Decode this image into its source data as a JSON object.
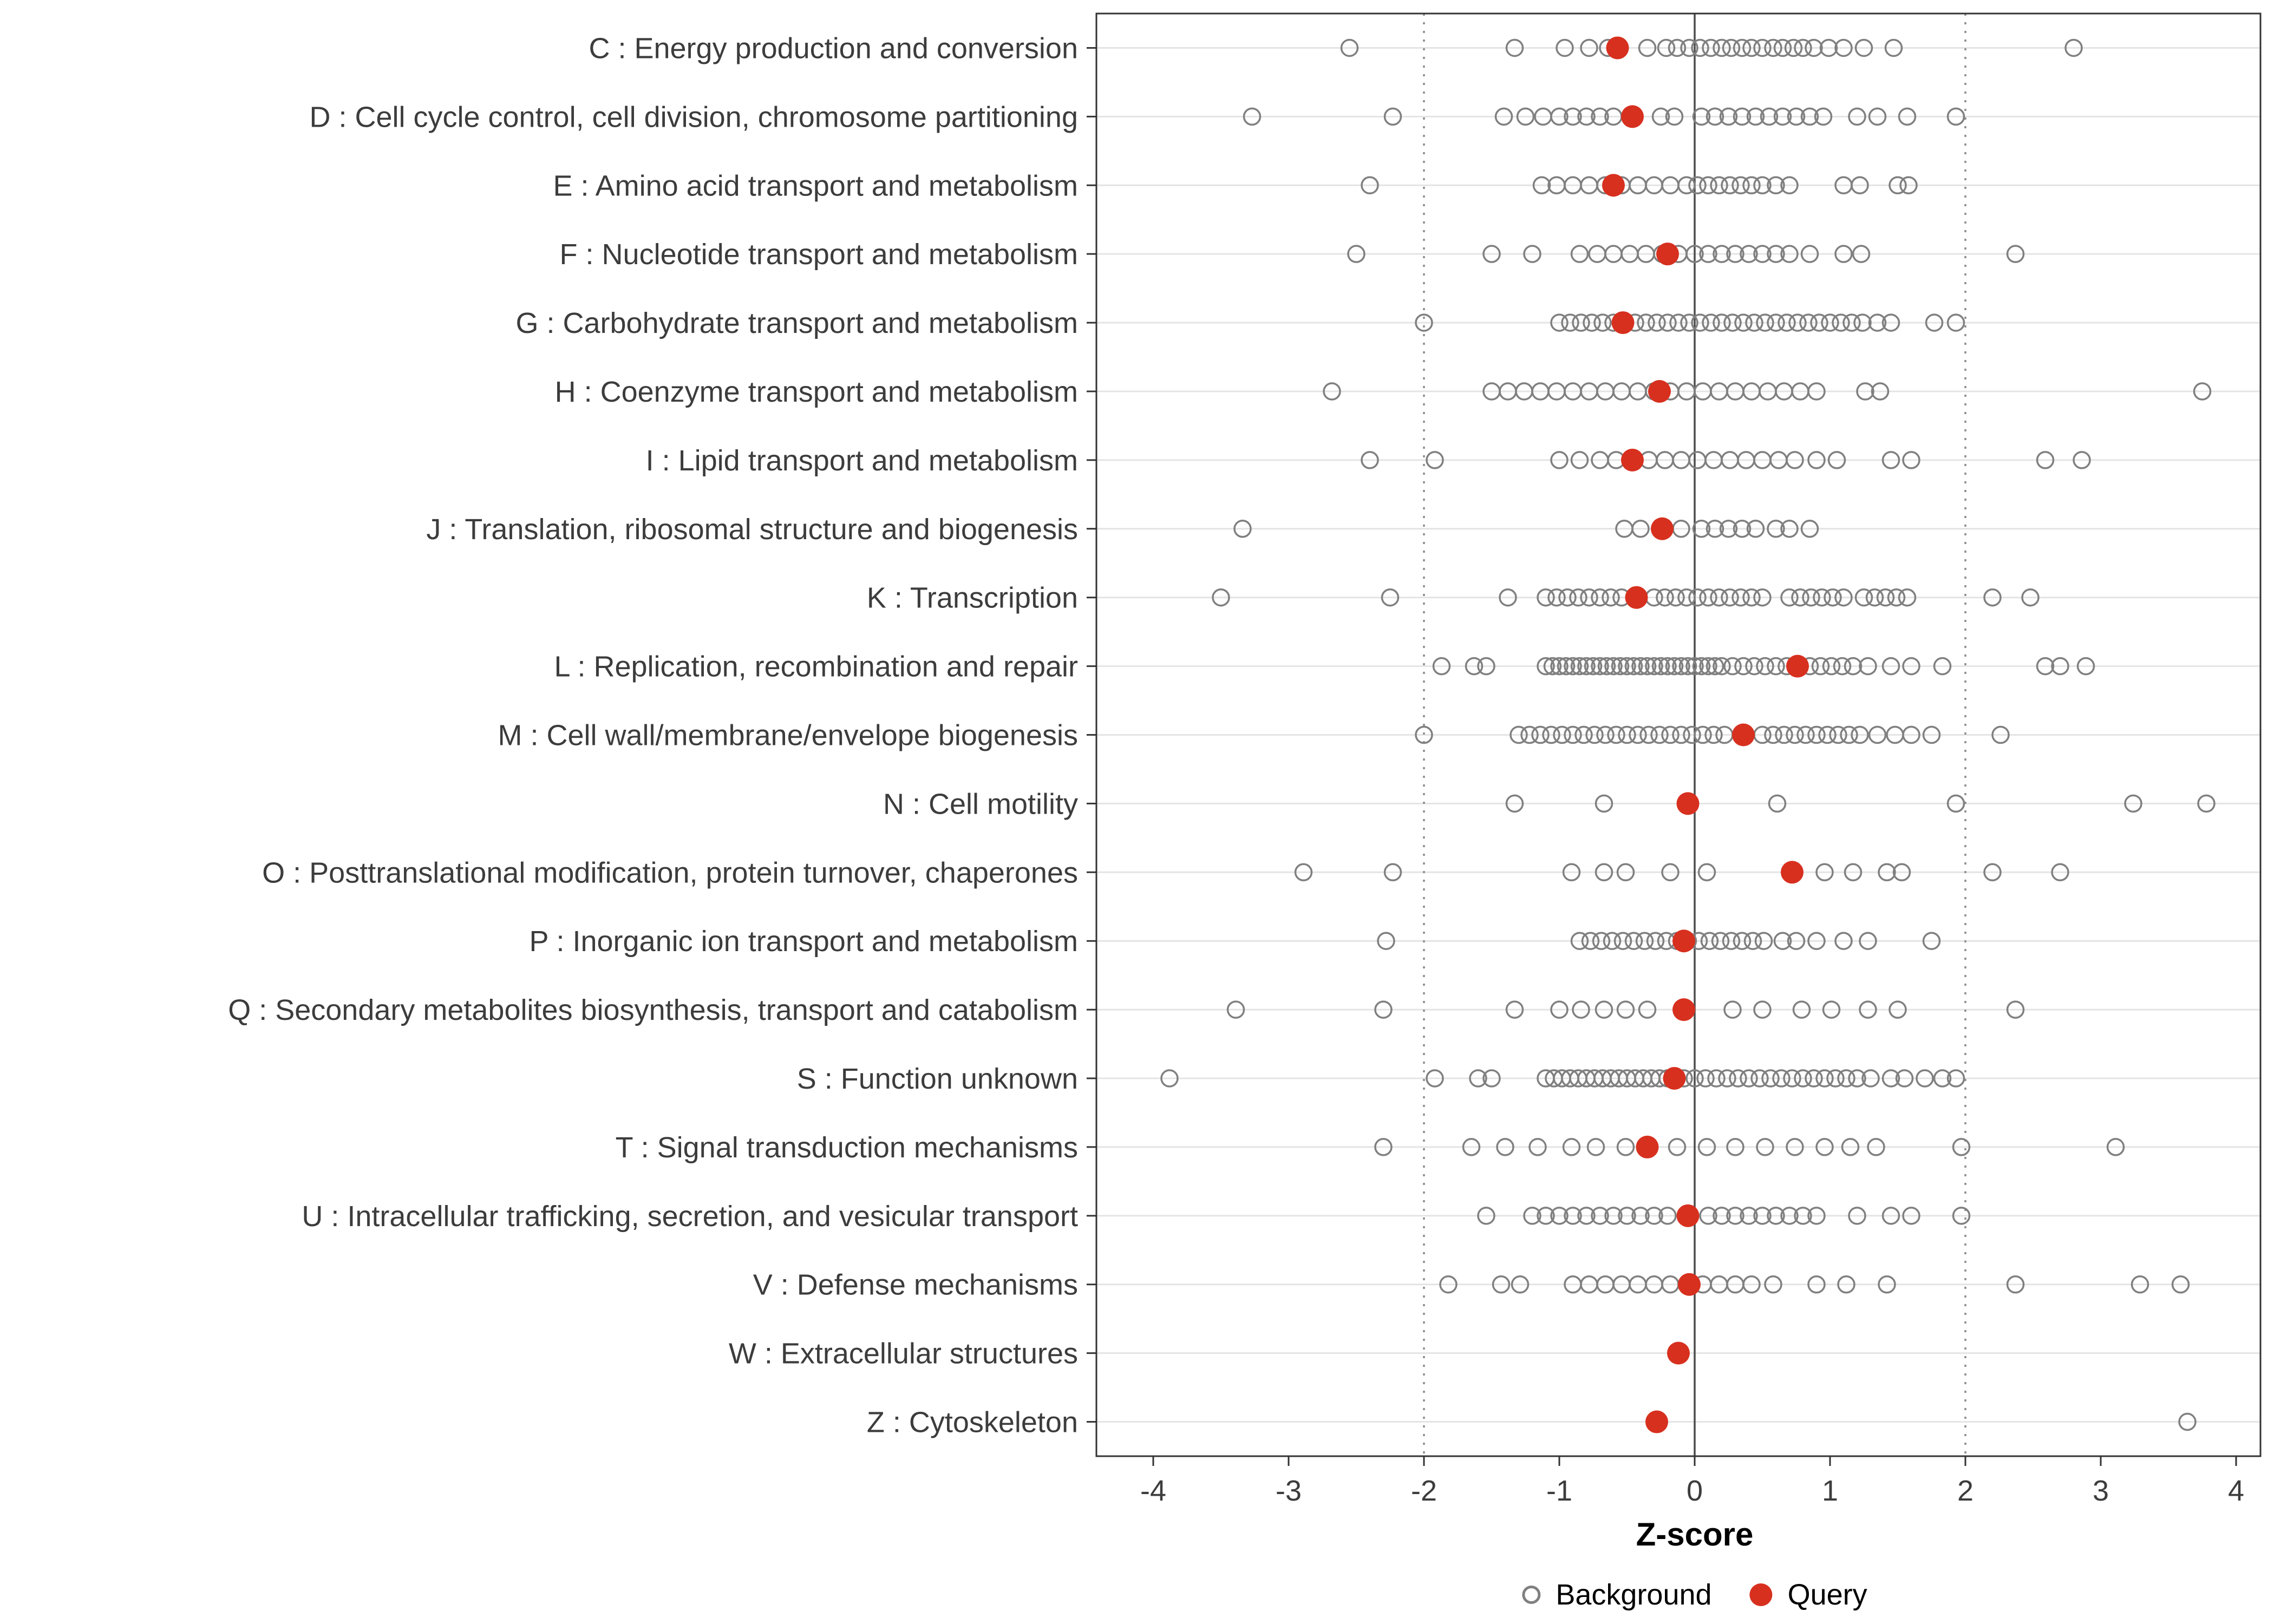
{
  "chart_data": {
    "type": "scatter",
    "title": "",
    "xlabel": "Z-score",
    "ylabel": "",
    "xlim": [
      -4.4,
      4.2
    ],
    "x_ticks": [
      -4,
      -3,
      -2,
      -1,
      0,
      1,
      2,
      3,
      4
    ],
    "grid": "horizontal-major",
    "legend_position": "bottom",
    "reference_lines": {
      "solid": [
        0
      ],
      "dotted": [
        -2,
        2
      ]
    },
    "colors": {
      "background": "#808080",
      "query": "#D7301F",
      "gridline": "#E4E4E4",
      "ref_dotted": "#8C8C8C",
      "ref_solid": "#4D4D4D",
      "text": "#3C3C3C",
      "axis": "#333333"
    },
    "legend": [
      {
        "label": "Background",
        "marker": "open-circle"
      },
      {
        "label": "Query",
        "marker": "filled-circle"
      }
    ],
    "categories": [
      {
        "label": "C : Energy production and conversion",
        "query": -0.57,
        "background": [
          -2.55,
          -1.33,
          -0.96,
          -0.78,
          -0.64,
          -0.35,
          -0.21,
          -0.13,
          -0.04,
          0.04,
          0.12,
          0.2,
          0.27,
          0.35,
          0.42,
          0.5,
          0.58,
          0.65,
          0.73,
          0.8,
          0.88,
          0.99,
          1.1,
          1.25,
          1.47,
          2.8
        ]
      },
      {
        "label": "D : Cell cycle control, cell division, chromosome partitioning",
        "query": -0.46,
        "background": [
          -3.27,
          -2.23,
          -1.41,
          -1.25,
          -1.12,
          -1.0,
          -0.9,
          -0.8,
          -0.7,
          -0.6,
          -0.25,
          -0.15,
          0.05,
          0.15,
          0.25,
          0.35,
          0.45,
          0.55,
          0.65,
          0.75,
          0.85,
          0.95,
          1.2,
          1.35,
          1.57,
          1.93
        ]
      },
      {
        "label": "E : Amino acid transport and metabolism",
        "query": -0.6,
        "background": [
          -2.4,
          -1.13,
          -1.02,
          -0.9,
          -0.78,
          -0.66,
          -0.54,
          -0.42,
          -0.3,
          -0.18,
          -0.06,
          0.02,
          0.1,
          0.18,
          0.26,
          0.34,
          0.42,
          0.5,
          0.6,
          0.7,
          1.1,
          1.22,
          1.5,
          1.58
        ]
      },
      {
        "label": "F : Nucleotide transport and metabolism",
        "query": -0.2,
        "background": [
          -2.5,
          -1.5,
          -1.2,
          -0.85,
          -0.72,
          -0.6,
          -0.48,
          -0.36,
          -0.24,
          -0.12,
          0.0,
          0.1,
          0.2,
          0.3,
          0.4,
          0.5,
          0.6,
          0.7,
          0.85,
          1.1,
          1.23,
          2.37
        ]
      },
      {
        "label": "G : Carbohydrate transport and metabolism",
        "query": -0.53,
        "background": [
          -2.0,
          -1.0,
          -0.92,
          -0.84,
          -0.76,
          -0.68,
          -0.6,
          -0.52,
          -0.44,
          -0.36,
          -0.28,
          -0.2,
          -0.12,
          -0.04,
          0.04,
          0.12,
          0.2,
          0.28,
          0.36,
          0.44,
          0.52,
          0.6,
          0.68,
          0.76,
          0.84,
          0.92,
          1.0,
          1.08,
          1.16,
          1.24,
          1.35,
          1.45,
          1.77,
          1.93
        ]
      },
      {
        "label": "H : Coenzyme transport and metabolism",
        "query": -0.26,
        "background": [
          -2.68,
          -1.5,
          -1.38,
          -1.26,
          -1.14,
          -1.02,
          -0.9,
          -0.78,
          -0.66,
          -0.54,
          -0.42,
          -0.3,
          -0.18,
          -0.06,
          0.06,
          0.18,
          0.3,
          0.42,
          0.54,
          0.66,
          0.78,
          0.9,
          1.26,
          1.37,
          3.75
        ]
      },
      {
        "label": "I : Lipid transport and metabolism",
        "query": -0.46,
        "background": [
          -2.4,
          -1.92,
          -1.0,
          -0.85,
          -0.7,
          -0.58,
          -0.34,
          -0.22,
          -0.1,
          0.02,
          0.14,
          0.26,
          0.38,
          0.5,
          0.62,
          0.74,
          0.9,
          1.05,
          1.45,
          1.6,
          2.59,
          2.86
        ]
      },
      {
        "label": "J : Translation, ribosomal structure and biogenesis",
        "query": -0.24,
        "background": [
          -3.34,
          -0.52,
          -0.4,
          -0.1,
          0.05,
          0.15,
          0.25,
          0.35,
          0.45,
          0.6,
          0.7,
          0.85
        ]
      },
      {
        "label": "K : Transcription",
        "query": -0.43,
        "background": [
          -3.5,
          -2.25,
          -1.38,
          -1.1,
          -1.02,
          -0.94,
          -0.86,
          -0.78,
          -0.7,
          -0.62,
          -0.54,
          -0.3,
          -0.22,
          -0.14,
          -0.06,
          0.02,
          0.1,
          0.18,
          0.26,
          0.34,
          0.42,
          0.5,
          0.7,
          0.78,
          0.86,
          0.94,
          1.02,
          1.1,
          1.25,
          1.33,
          1.41,
          1.49,
          1.57,
          2.2,
          2.48
        ]
      },
      {
        "label": "L : Replication, recombination and repair",
        "query": 0.76,
        "background": [
          -1.87,
          -1.63,
          -1.54,
          -1.1,
          -1.05,
          -1.0,
          -0.95,
          -0.9,
          -0.85,
          -0.8,
          -0.75,
          -0.7,
          -0.65,
          -0.6,
          -0.55,
          -0.5,
          -0.45,
          -0.4,
          -0.35,
          -0.3,
          -0.25,
          -0.2,
          -0.15,
          -0.1,
          -0.05,
          0.0,
          0.05,
          0.1,
          0.15,
          0.2,
          0.28,
          0.36,
          0.44,
          0.52,
          0.6,
          0.68,
          0.85,
          0.93,
          1.01,
          1.09,
          1.17,
          1.28,
          1.45,
          1.6,
          1.83,
          2.59,
          2.7,
          2.89
        ]
      },
      {
        "label": "M : Cell wall/membrane/envelope biogenesis",
        "query": 0.36,
        "background": [
          -2.0,
          -1.3,
          -1.22,
          -1.14,
          -1.06,
          -0.98,
          -0.9,
          -0.82,
          -0.74,
          -0.66,
          -0.58,
          -0.5,
          -0.42,
          -0.34,
          -0.26,
          -0.18,
          -0.1,
          -0.02,
          0.06,
          0.14,
          0.22,
          0.5,
          0.58,
          0.66,
          0.74,
          0.82,
          0.9,
          0.98,
          1.06,
          1.14,
          1.22,
          1.35,
          1.48,
          1.6,
          1.75,
          2.26
        ]
      },
      {
        "label": "N : Cell motility",
        "query": -0.05,
        "background": [
          -1.33,
          -0.67,
          0.61,
          1.93,
          3.24,
          3.78
        ]
      },
      {
        "label": "O : Posttranslational modification, protein turnover, chaperones",
        "query": 0.72,
        "background": [
          -2.89,
          -2.23,
          -0.91,
          -0.67,
          -0.51,
          -0.18,
          0.09,
          0.96,
          1.17,
          1.42,
          1.53,
          2.2,
          2.7
        ]
      },
      {
        "label": "P : Inorganic ion transport and metabolism",
        "query": -0.08,
        "background": [
          -2.28,
          -0.85,
          -0.77,
          -0.69,
          -0.61,
          -0.53,
          -0.45,
          -0.37,
          -0.29,
          -0.21,
          -0.13,
          -0.05,
          0.03,
          0.11,
          0.19,
          0.27,
          0.35,
          0.43,
          0.51,
          0.65,
          0.75,
          0.9,
          1.1,
          1.28,
          1.75
        ]
      },
      {
        "label": "Q : Secondary metabolites biosynthesis, transport and catabolism",
        "query": -0.08,
        "background": [
          -3.39,
          -2.3,
          -1.33,
          -1.0,
          -0.84,
          -0.67,
          -0.51,
          -0.35,
          0.28,
          0.5,
          0.79,
          1.01,
          1.28,
          1.5,
          2.37
        ]
      },
      {
        "label": "S : Function unknown",
        "query": -0.15,
        "background": [
          -3.88,
          -1.92,
          -1.6,
          -1.5,
          -1.1,
          -1.04,
          -0.98,
          -0.92,
          -0.86,
          -0.8,
          -0.74,
          -0.68,
          -0.62,
          -0.56,
          -0.5,
          -0.44,
          -0.38,
          -0.32,
          -0.26,
          -0.2,
          -0.08,
          0.0,
          0.08,
          0.16,
          0.24,
          0.32,
          0.4,
          0.48,
          0.56,
          0.64,
          0.72,
          0.8,
          0.88,
          0.96,
          1.04,
          1.12,
          1.2,
          1.3,
          1.45,
          1.55,
          1.7,
          1.83,
          1.93
        ]
      },
      {
        "label": "T : Signal transduction mechanisms",
        "query": -0.35,
        "background": [
          -2.3,
          -1.65,
          -1.4,
          -1.16,
          -0.91,
          -0.73,
          -0.51,
          -0.13,
          0.09,
          0.3,
          0.52,
          0.74,
          0.96,
          1.15,
          1.34,
          1.97,
          3.11
        ]
      },
      {
        "label": "U : Intracellular trafficking, secretion, and vesicular transport",
        "query": -0.05,
        "background": [
          -1.54,
          -1.2,
          -1.1,
          -1.0,
          -0.9,
          -0.8,
          -0.7,
          -0.6,
          -0.5,
          -0.4,
          -0.3,
          -0.2,
          0.1,
          0.2,
          0.3,
          0.4,
          0.5,
          0.6,
          0.7,
          0.8,
          0.9,
          1.2,
          1.45,
          1.6,
          1.97
        ]
      },
      {
        "label": "V : Defense mechanisms",
        "query": -0.04,
        "background": [
          -1.82,
          -1.43,
          -1.29,
          -0.9,
          -0.78,
          -0.66,
          -0.54,
          -0.42,
          -0.3,
          -0.18,
          -0.06,
          0.06,
          0.18,
          0.3,
          0.42,
          0.58,
          0.9,
          1.12,
          1.42,
          2.37,
          3.29,
          3.59
        ]
      },
      {
        "label": "W : Extracellular structures",
        "query": -0.12,
        "background": []
      },
      {
        "label": "Z : Cytoskeleton",
        "query": -0.28,
        "background": [
          3.64
        ]
      }
    ]
  }
}
